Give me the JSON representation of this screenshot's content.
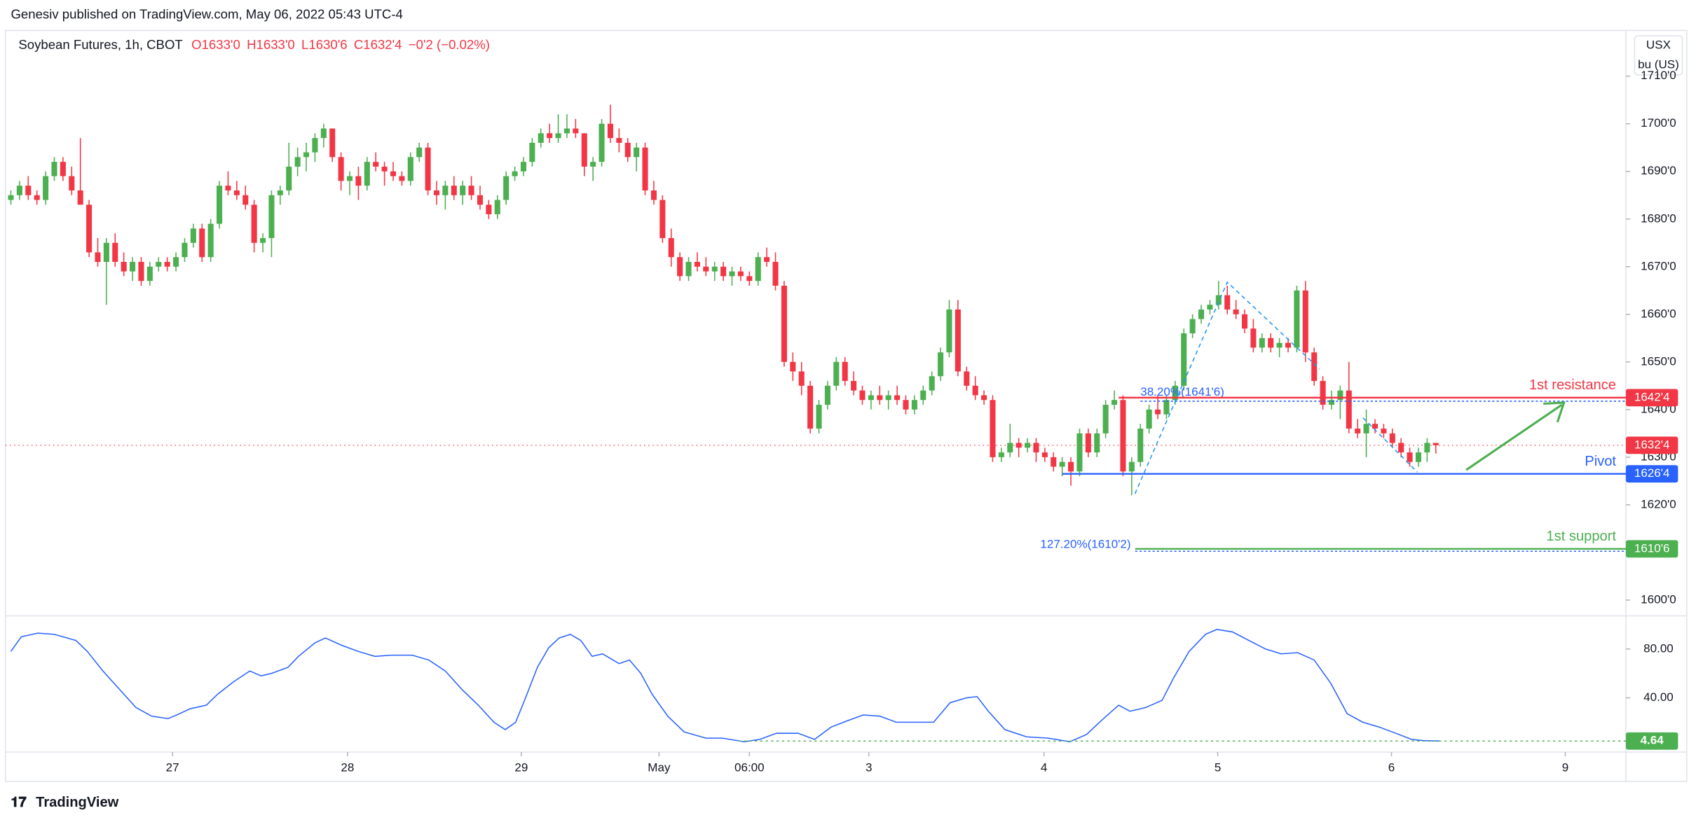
{
  "chart_data": {
    "type": "candlestick",
    "header": "Genesiv published on TradingView.com, May 06, 2022 05:43 UTC-4",
    "title": "Soybean Futures, 1h, CBOT",
    "ohlc_legend": [
      "O1633'0",
      "H1633'0",
      "L1630'6",
      "C1632'4",
      "−0'2 (−0.02%)"
    ],
    "currency": "USX",
    "unit": "bu (US)",
    "footer": "TradingView",
    "up_color": "#4caf50",
    "down_color": "#f23645",
    "xlim": [
      -0.625,
      185.875
    ],
    "xticks": [
      {
        "value": 18.6,
        "label": "27"
      },
      {
        "value": 38.75,
        "label": "28"
      },
      {
        "value": 58.75,
        "label": "29"
      },
      {
        "value": 74.6,
        "label": "May"
      },
      {
        "value": 85,
        "label": "06:00"
      },
      {
        "value": 98.75,
        "label": "3"
      },
      {
        "value": 118.9,
        "label": "4"
      },
      {
        "value": 138.9,
        "label": "5"
      },
      {
        "value": 158.9,
        "label": "6"
      },
      {
        "value": 178.9,
        "label": "9"
      }
    ],
    "ylim": [
      1596.8,
      1719.6
    ],
    "yticks": [
      {
        "value": 1600,
        "label": "1600'0"
      },
      {
        "value": 1610,
        "label": "1610'0"
      },
      {
        "value": 1620,
        "label": "1620'0"
      },
      {
        "value": 1630,
        "label": "1630'0"
      },
      {
        "value": 1640,
        "label": "1640'0"
      },
      {
        "value": 1650,
        "label": "1650'0"
      },
      {
        "value": 1660,
        "label": "1660'0"
      },
      {
        "value": 1670,
        "label": "1670'0"
      },
      {
        "value": 1680,
        "label": "1680'0"
      },
      {
        "value": 1690,
        "label": "1690'0"
      },
      {
        "value": 1700,
        "label": "1700'0"
      },
      {
        "value": 1710,
        "label": "1710'0"
      }
    ],
    "candles": [
      [
        1684,
        1686,
        1683,
        1685
      ],
      [
        1685,
        1688,
        1684,
        1687
      ],
      [
        1687,
        1689,
        1684,
        1685
      ],
      [
        1685,
        1686,
        1683,
        1684
      ],
      [
        1684,
        1690,
        1683,
        1689
      ],
      [
        1689,
        1693,
        1688,
        1692
      ],
      [
        1692,
        1693,
        1688,
        1689
      ],
      [
        1689,
        1691,
        1685,
        1686
      ],
      [
        1686,
        1697,
        1684,
        1683
      ],
      [
        1683,
        1684,
        1672,
        1673
      ],
      [
        1673,
        1676,
        1670,
        1671
      ],
      [
        1671,
        1676,
        1662,
        1675
      ],
      [
        1675,
        1677,
        1670,
        1671
      ],
      [
        1671,
        1673,
        1668,
        1669
      ],
      [
        1669,
        1672,
        1667,
        1671
      ],
      [
        1671,
        1672,
        1666,
        1667
      ],
      [
        1667,
        1671,
        1666,
        1670
      ],
      [
        1670,
        1672,
        1669,
        1671
      ],
      [
        1671,
        1672,
        1669,
        1670
      ],
      [
        1670,
        1673,
        1669,
        1672
      ],
      [
        1672,
        1676,
        1671,
        1675
      ],
      [
        1675,
        1679,
        1674,
        1678
      ],
      [
        1678,
        1679,
        1671,
        1672
      ],
      [
        1672,
        1680,
        1671,
        1679
      ],
      [
        1679,
        1688,
        1678,
        1687
      ],
      [
        1687,
        1690,
        1685,
        1686
      ],
      [
        1686,
        1688,
        1684,
        1685
      ],
      [
        1685,
        1687,
        1682,
        1683
      ],
      [
        1683,
        1684,
        1673,
        1675
      ],
      [
        1675,
        1677,
        1673,
        1676
      ],
      [
        1676,
        1686,
        1672,
        1685
      ],
      [
        1685,
        1687,
        1683,
        1686
      ],
      [
        1686,
        1696,
        1685,
        1691
      ],
      [
        1691,
        1695,
        1689,
        1693
      ],
      [
        1693,
        1696,
        1690,
        1694
      ],
      [
        1694,
        1698,
        1692,
        1697
      ],
      [
        1697,
        1700,
        1695,
        1699
      ],
      [
        1699,
        1699,
        1692,
        1693
      ],
      [
        1693,
        1694,
        1686,
        1688
      ],
      [
        1688,
        1690,
        1685,
        1689
      ],
      [
        1689,
        1691,
        1684,
        1687
      ],
      [
        1687,
        1693,
        1686,
        1692
      ],
      [
        1692,
        1694,
        1690,
        1691
      ],
      [
        1691,
        1692,
        1687,
        1690
      ],
      [
        1690,
        1692,
        1688,
        1689
      ],
      [
        1689,
        1690,
        1687,
        1688
      ],
      [
        1688,
        1694,
        1687,
        1693
      ],
      [
        1693,
        1696,
        1692,
        1695
      ],
      [
        1695,
        1696,
        1685,
        1686
      ],
      [
        1686,
        1688,
        1683,
        1685
      ],
      [
        1685,
        1688,
        1682,
        1687
      ],
      [
        1687,
        1689,
        1684,
        1685
      ],
      [
        1685,
        1688,
        1683,
        1687
      ],
      [
        1687,
        1689,
        1684,
        1685
      ],
      [
        1685,
        1687,
        1682,
        1683
      ],
      [
        1683,
        1684,
        1680,
        1681
      ],
      [
        1681,
        1685,
        1680,
        1684
      ],
      [
        1684,
        1690,
        1683,
        1689
      ],
      [
        1689,
        1691,
        1688,
        1690
      ],
      [
        1690,
        1693,
        1689,
        1692
      ],
      [
        1692,
        1697,
        1691,
        1696
      ],
      [
        1696,
        1699,
        1695,
        1698
      ],
      [
        1698,
        1700,
        1696,
        1697
      ],
      [
        1697,
        1702,
        1696,
        1698
      ],
      [
        1698,
        1702,
        1697,
        1699
      ],
      [
        1699,
        1701,
        1697,
        1698
      ],
      [
        1698,
        1698,
        1689,
        1691
      ],
      [
        1691,
        1693,
        1688,
        1692
      ],
      [
        1692,
        1701,
        1691,
        1700
      ],
      [
        1700,
        1704,
        1696,
        1697
      ],
      [
        1697,
        1699,
        1694,
        1696
      ],
      [
        1696,
        1697,
        1692,
        1693
      ],
      [
        1693,
        1696,
        1690,
        1695
      ],
      [
        1695,
        1696,
        1685,
        1686
      ],
      [
        1686,
        1688,
        1683,
        1684
      ],
      [
        1684,
        1685,
        1675,
        1676
      ],
      [
        1676,
        1678,
        1670,
        1672
      ],
      [
        1672,
        1673,
        1667,
        1668
      ],
      [
        1668,
        1672,
        1667,
        1671
      ],
      [
        1671,
        1673,
        1669,
        1670
      ],
      [
        1670,
        1672,
        1668,
        1669
      ],
      [
        1669,
        1671,
        1667,
        1670
      ],
      [
        1670,
        1671,
        1667,
        1668
      ],
      [
        1668,
        1670,
        1666,
        1669
      ],
      [
        1669,
        1670,
        1667,
        1668
      ],
      [
        1668,
        1669,
        1666,
        1667
      ],
      [
        1667,
        1673,
        1666,
        1672
      ],
      [
        1672,
        1674,
        1670,
        1671
      ],
      [
        1671,
        1673,
        1665,
        1666
      ],
      [
        1666,
        1667,
        1649,
        1650
      ],
      [
        1650,
        1652,
        1646,
        1648
      ],
      [
        1648,
        1650,
        1643,
        1645
      ],
      [
        1645,
        1646,
        1635,
        1636
      ],
      [
        1636,
        1642,
        1635,
        1641
      ],
      [
        1641,
        1646,
        1640,
        1645
      ],
      [
        1645,
        1651,
        1644,
        1650
      ],
      [
        1650,
        1651,
        1645,
        1646
      ],
      [
        1646,
        1648,
        1643,
        1644
      ],
      [
        1644,
        1645,
        1641,
        1642
      ],
      [
        1642,
        1644,
        1640,
        1643
      ],
      [
        1643,
        1645,
        1641,
        1642
      ],
      [
        1642,
        1644,
        1640,
        1643
      ],
      [
        1643,
        1645,
        1641,
        1642
      ],
      [
        1642,
        1643,
        1639,
        1640
      ],
      [
        1640,
        1643,
        1639,
        1642
      ],
      [
        1642,
        1645,
        1641,
        1644
      ],
      [
        1644,
        1648,
        1643,
        1647
      ],
      [
        1647,
        1653,
        1646,
        1652
      ],
      [
        1652,
        1663,
        1651,
        1661
      ],
      [
        1661,
        1663,
        1647,
        1648
      ],
      [
        1648,
        1649,
        1644,
        1645
      ],
      [
        1645,
        1647,
        1642,
        1643
      ],
      [
        1643,
        1644,
        1641,
        1642
      ],
      [
        1642,
        1643,
        1629,
        1630
      ],
      [
        1630,
        1632,
        1629,
        1631
      ],
      [
        1631,
        1637,
        1630,
        1633
      ],
      [
        1633,
        1634,
        1630,
        1632
      ],
      [
        1632,
        1634,
        1631,
        1633
      ],
      [
        1633,
        1634,
        1629,
        1631
      ],
      [
        1631,
        1632,
        1629,
        1630
      ],
      [
        1630,
        1631,
        1627,
        1628
      ],
      [
        1628,
        1630,
        1626,
        1629
      ],
      [
        1629,
        1630,
        1624,
        1627
      ],
      [
        1627,
        1636,
        1626,
        1635
      ],
      [
        1635,
        1636,
        1630,
        1631
      ],
      [
        1631,
        1636,
        1630,
        1635
      ],
      [
        1635,
        1642,
        1634,
        1641
      ],
      [
        1641,
        1644,
        1640,
        1642
      ],
      [
        1642,
        1643,
        1626,
        1627
      ],
      [
        1627,
        1630,
        1622,
        1629
      ],
      [
        1629,
        1637,
        1628,
        1636
      ],
      [
        1636,
        1641,
        1635,
        1640
      ],
      [
        1640,
        1643,
        1638,
        1639
      ],
      [
        1639,
        1643,
        1638,
        1642
      ],
      [
        1642,
        1646,
        1641,
        1645
      ],
      [
        1645,
        1657,
        1644,
        1656
      ],
      [
        1656,
        1660,
        1655,
        1659
      ],
      [
        1659,
        1662,
        1658,
        1661
      ],
      [
        1661,
        1663,
        1660,
        1662
      ],
      [
        1662,
        1667,
        1661,
        1664
      ],
      [
        1664,
        1666,
        1660,
        1661
      ],
      [
        1661,
        1663,
        1659,
        1660
      ],
      [
        1660,
        1661,
        1656,
        1657
      ],
      [
        1657,
        1659,
        1652,
        1653
      ],
      [
        1653,
        1656,
        1652,
        1655
      ],
      [
        1655,
        1656,
        1652,
        1653
      ],
      [
        1653,
        1655,
        1651,
        1654
      ],
      [
        1654,
        1655,
        1652,
        1653
      ],
      [
        1653,
        1666,
        1652,
        1665
      ],
      [
        1665,
        1667,
        1650,
        1652
      ],
      [
        1652,
        1653,
        1645,
        1646
      ],
      [
        1646,
        1647,
        1640,
        1641
      ],
      [
        1641,
        1644,
        1640,
        1642
      ],
      [
        1642,
        1645,
        1638,
        1644
      ],
      [
        1644,
        1650,
        1635,
        1636
      ],
      [
        1636,
        1638,
        1634,
        1635
      ],
      [
        1635,
        1640,
        1630,
        1637
      ],
      [
        1637,
        1638,
        1635,
        1636
      ],
      [
        1636,
        1637,
        1634,
        1635
      ],
      [
        1635,
        1636,
        1632,
        1633
      ],
      [
        1633,
        1634,
        1630,
        1631
      ],
      [
        1631,
        1632,
        1628,
        1629
      ],
      [
        1629,
        1632,
        1628,
        1631
      ],
      [
        1631,
        1634,
        1629,
        1633
      ],
      [
        1633,
        1633,
        1630.75,
        1632.5
      ]
    ],
    "current": {
      "value": 1632.5,
      "label": "1632'4",
      "color": "#f23645"
    },
    "levels": [
      {
        "name": "1st resistance",
        "value": 1642.5,
        "label": "1642'4",
        "color": "#f23645",
        "x_start": 127.5
      },
      {
        "name": "Pivot",
        "value": 1626.5,
        "label": "1626'4",
        "color": "#2962ff",
        "x_start": 121
      },
      {
        "name": "1st support",
        "value": 1610.75,
        "label": "1610'6",
        "color": "#4caf50",
        "x_start": 129.4
      }
    ],
    "fibs": [
      {
        "label": "38.20%(1641'6)",
        "value": 1641.75,
        "x_start": 130,
        "color": "#2962ff"
      },
      {
        "label": "127.20%(1610'2)",
        "value": 1610.25,
        "x_start": 129.4,
        "color": "#2962ff"
      }
    ],
    "oscillator": {
      "color": "#2962ff",
      "ylim": [
        -4.4,
        106.7
      ],
      "yticks": [
        {
          "value": 80,
          "label": "80.00"
        },
        {
          "value": 40,
          "label": "40.00"
        }
      ],
      "x": [
        0,
        1.2,
        3.1,
        5,
        7.5,
        8.8,
        10.6,
        12.5,
        14.4,
        16.2,
        18.1,
        19.4,
        20.6,
        22.5,
        23.8,
        25.6,
        27.5,
        28.8,
        30,
        31.9,
        33.1,
        35,
        36.2,
        38.1,
        40,
        41.9,
        43.8,
        46.2,
        48.1,
        50,
        51.9,
        53.8,
        55.6,
        56.9,
        58.1,
        59.4,
        60.6,
        61.9,
        63.1,
        64.4,
        65.6,
        66.9,
        68.1,
        70,
        71.2,
        72.5,
        73.8,
        75.6,
        77.5,
        80,
        81.9,
        84.4,
        86.2,
        88.1,
        90.6,
        92.5,
        94.4,
        96.2,
        98.1,
        100,
        101.9,
        103.8,
        106.2,
        108.1,
        110,
        111.2,
        112.5,
        114.4,
        116.9,
        119.4,
        121.9,
        123.8,
        125.6,
        127.5,
        128.8,
        130.6,
        132.5,
        133.8,
        135.6,
        137.5,
        138.8,
        140.6,
        142.5,
        144.4,
        146.2,
        148.1,
        150,
        151.9,
        153.8,
        155.6,
        157.5,
        159.4,
        161.2,
        162.5,
        164.4
      ],
      "values": [
        78,
        90,
        93,
        92,
        87,
        78,
        62,
        47,
        32,
        25,
        23,
        27,
        31,
        34,
        43,
        53,
        62,
        58,
        60,
        65,
        74,
        85,
        89,
        83,
        78,
        74,
        75,
        75,
        71,
        62,
        47,
        34,
        20,
        14,
        20,
        43,
        65,
        81,
        89,
        92,
        87,
        74,
        76,
        68,
        71,
        60,
        43,
        25,
        12,
        7,
        7,
        4,
        6,
        11,
        11,
        6,
        16,
        21,
        26,
        25,
        20,
        20,
        20,
        36,
        40,
        41,
        29,
        14,
        8,
        7,
        4,
        10,
        22,
        34,
        29,
        32,
        38,
        56,
        78,
        92,
        96,
        94,
        87,
        80,
        76,
        77,
        71,
        52,
        27,
        20,
        16,
        11,
        6,
        5,
        4.64
      ],
      "last": {
        "value": 4.64,
        "label": "4.64",
        "color": "#4caf50",
        "x_start": 83.75
      }
    }
  }
}
